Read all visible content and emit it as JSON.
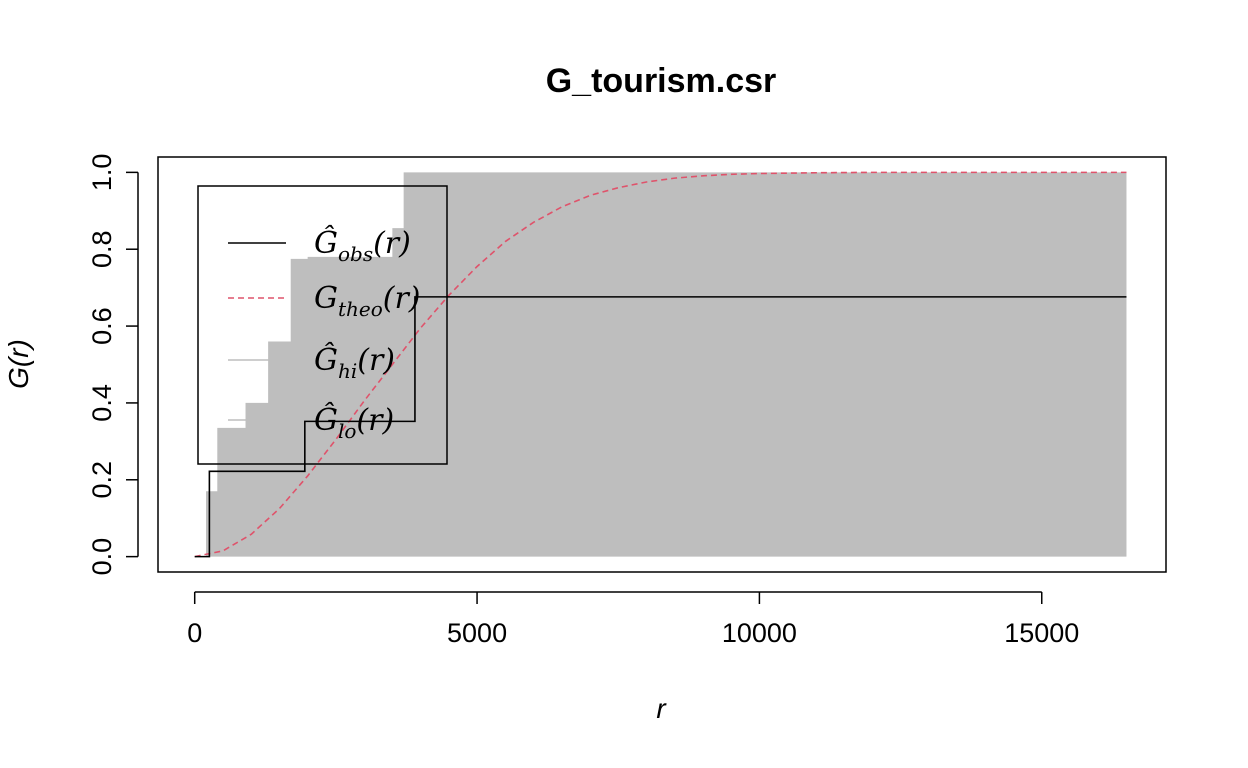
{
  "chart_data": {
    "type": "line",
    "title": "G_tourism.csr",
    "xlabel": "r",
    "ylabel": "G(r)",
    "xlim": [
      -650,
      17200
    ],
    "ylim": [
      -0.04,
      1.04
    ],
    "xticks": [
      0,
      5000,
      10000,
      15000
    ],
    "xtick_labels": [
      "0",
      "5000",
      "10000",
      "15000"
    ],
    "yticks": [
      0.0,
      0.2,
      0.4,
      0.6,
      0.8,
      1.0
    ],
    "ytick_labels": [
      "0.0",
      "0.2",
      "0.4",
      "0.6",
      "0.8",
      "1.0"
    ],
    "grid": false,
    "legend_position": "top-left",
    "colors": {
      "obs": "#000000",
      "theo": "#DF536B",
      "envelope": "#BEBEBE"
    },
    "legend": [
      {
        "key": "obs",
        "base": "Ĝ",
        "sub": "obs",
        "arg": "(r)",
        "style": "solid"
      },
      {
        "key": "theo",
        "base": "G",
        "sub": "theo",
        "arg": "(r)",
        "style": "dashed"
      },
      {
        "key": "hi",
        "base": "Ĝ",
        "sub": "hi",
        "arg": "(r)",
        "style": "solid-grey"
      },
      {
        "key": "lo",
        "base": "Ĝ",
        "sub": "lo",
        "arg": "(r)",
        "style": "solid-grey"
      }
    ],
    "series": [
      {
        "name": "obs",
        "step": true,
        "x": [
          0,
          230,
          260,
          1950,
          3850,
          3900,
          16500
        ],
        "y": [
          0,
          0,
          0.222,
          0.352,
          0.352,
          0.676,
          0.676
        ]
      },
      {
        "name": "theo",
        "x": [
          0,
          500,
          1000,
          1500,
          2000,
          2500,
          3000,
          3500,
          4000,
          4500,
          5000,
          5500,
          6000,
          6500,
          7000,
          7500,
          8000,
          8500,
          9000,
          9500,
          10000,
          11000,
          12000,
          13000,
          14000,
          15000,
          16500
        ],
        "y": [
          0,
          0.015,
          0.058,
          0.125,
          0.21,
          0.305,
          0.405,
          0.5,
          0.595,
          0.68,
          0.755,
          0.82,
          0.87,
          0.91,
          0.94,
          0.96,
          0.975,
          0.985,
          0.991,
          0.995,
          0.997,
          0.999,
          1.0,
          1.0,
          1.0,
          1.0,
          1.0
        ]
      },
      {
        "name": "hi",
        "step": true,
        "x": [
          0,
          150,
          200,
          400,
          900,
          1300,
          1700,
          2000,
          3500,
          3700,
          16500
        ],
        "y": [
          0,
          0,
          0.17,
          0.335,
          0.4,
          0.56,
          0.775,
          0.78,
          0.855,
          1.0,
          1.0
        ]
      },
      {
        "name": "lo",
        "x": [
          0,
          16500
        ],
        "y": [
          0,
          0
        ]
      }
    ]
  }
}
